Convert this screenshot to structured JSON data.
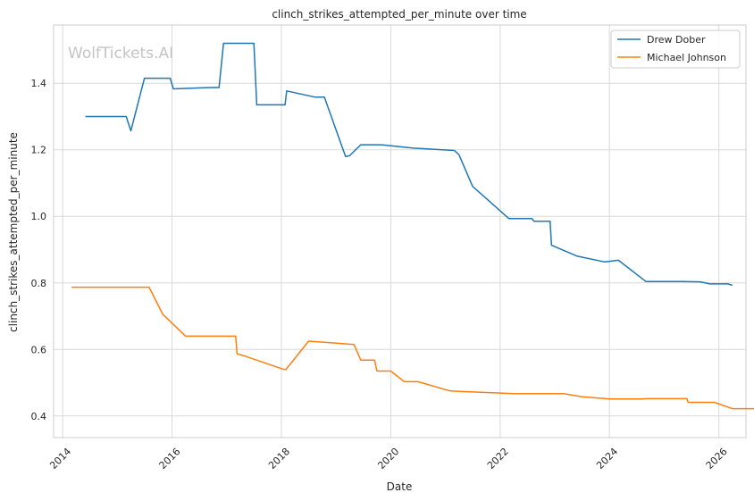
{
  "chart_data": {
    "type": "line",
    "title": "clinch_strikes_attempted_per_minute over time",
    "xlabel": "Date",
    "ylabel": "clinch_strikes_attempted_per_minute",
    "watermark": "WolfTickets.AI",
    "xlim": [
      "2013-11-01",
      "2026-07-01"
    ],
    "ylim": [
      0.335,
      1.575
    ],
    "x_ticks": [
      "2014-01-01",
      "2016-01-01",
      "2018-01-01",
      "2020-01-01",
      "2022-01-01",
      "2024-01-01",
      "2026-01-01"
    ],
    "x_tick_labels": [
      "2014",
      "2016",
      "2018",
      "2020",
      "2022",
      "2024",
      "2026"
    ],
    "y_ticks": [
      0.4,
      0.6,
      0.8,
      1.0,
      1.2,
      1.4
    ],
    "y_tick_labels": [
      "0.4",
      "0.6",
      "0.8",
      "1.0",
      "1.2",
      "1.4"
    ],
    "grid": true,
    "legend_position": "top-right",
    "series": [
      {
        "name": "Drew Dober",
        "color": "#1f77b4",
        "points": [
          [
            "2014-06-01",
            1.3
          ],
          [
            "2015-03-01",
            1.3
          ],
          [
            "2015-04-01",
            1.257
          ],
          [
            "2015-07-01",
            1.415
          ],
          [
            "2015-12-20",
            1.415
          ],
          [
            "2016-01-10",
            1.383
          ],
          [
            "2016-09-15",
            1.387
          ],
          [
            "2016-11-10",
            1.387
          ],
          [
            "2016-12-10",
            1.52
          ],
          [
            "2017-07-01",
            1.52
          ],
          [
            "2017-07-20",
            1.335
          ],
          [
            "2018-01-25",
            1.335
          ],
          [
            "2018-02-05",
            1.377
          ],
          [
            "2018-08-15",
            1.358
          ],
          [
            "2018-10-15",
            1.358
          ],
          [
            "2019-03-05",
            1.18
          ],
          [
            "2019-04-01",
            1.182
          ],
          [
            "2019-06-15",
            1.215
          ],
          [
            "2019-11-01",
            1.215
          ],
          [
            "2020-06-01",
            1.205
          ],
          [
            "2021-03-01",
            1.198
          ],
          [
            "2021-04-01",
            1.185
          ],
          [
            "2021-07-01",
            1.09
          ],
          [
            "2022-03-01",
            0.993
          ],
          [
            "2022-08-01",
            0.993
          ],
          [
            "2022-08-15",
            0.985
          ],
          [
            "2022-12-01",
            0.985
          ],
          [
            "2022-12-10",
            0.913
          ],
          [
            "2023-06-01",
            0.88
          ],
          [
            "2023-12-01",
            0.863
          ],
          [
            "2024-03-01",
            0.868
          ],
          [
            "2024-09-01",
            0.804
          ],
          [
            "2025-05-01",
            0.804
          ],
          [
            "2025-09-01",
            0.803
          ],
          [
            "2025-11-01",
            0.797
          ],
          [
            "2026-03-01",
            0.797
          ],
          [
            "2026-04-01",
            0.793
          ]
        ]
      },
      {
        "name": "Michael Johnson",
        "color": "#ff7f0e",
        "points": [
          [
            "2014-03-01",
            0.787
          ],
          [
            "2015-08-01",
            0.787
          ],
          [
            "2015-11-01",
            0.705
          ],
          [
            "2016-04-01",
            0.64
          ],
          [
            "2017-03-01",
            0.64
          ],
          [
            "2017-03-10",
            0.587
          ],
          [
            "2017-05-01",
            0.58
          ],
          [
            "2018-01-15",
            0.54
          ],
          [
            "2018-02-01",
            0.54
          ],
          [
            "2018-07-01",
            0.625
          ],
          [
            "2019-05-01",
            0.615
          ],
          [
            "2019-06-15",
            0.568
          ],
          [
            "2019-09-15",
            0.568
          ],
          [
            "2019-10-01",
            0.535
          ],
          [
            "2020-01-01",
            0.535
          ],
          [
            "2020-04-01",
            0.503
          ],
          [
            "2020-07-01",
            0.503
          ],
          [
            "2021-02-01",
            0.475
          ],
          [
            "2022-04-01",
            0.467
          ],
          [
            "2023-03-01",
            0.467
          ],
          [
            "2023-07-01",
            0.458
          ],
          [
            "2024-01-01",
            0.451
          ],
          [
            "2024-08-01",
            0.451
          ],
          [
            "2024-09-01",
            0.452
          ],
          [
            "2025-06-01",
            0.452
          ],
          [
            "2025-06-10",
            0.441
          ],
          [
            "2025-12-01",
            0.441
          ],
          [
            "2026-04-01",
            0.422
          ],
          [
            "2026-09-01",
            0.422
          ]
        ]
      }
    ]
  }
}
